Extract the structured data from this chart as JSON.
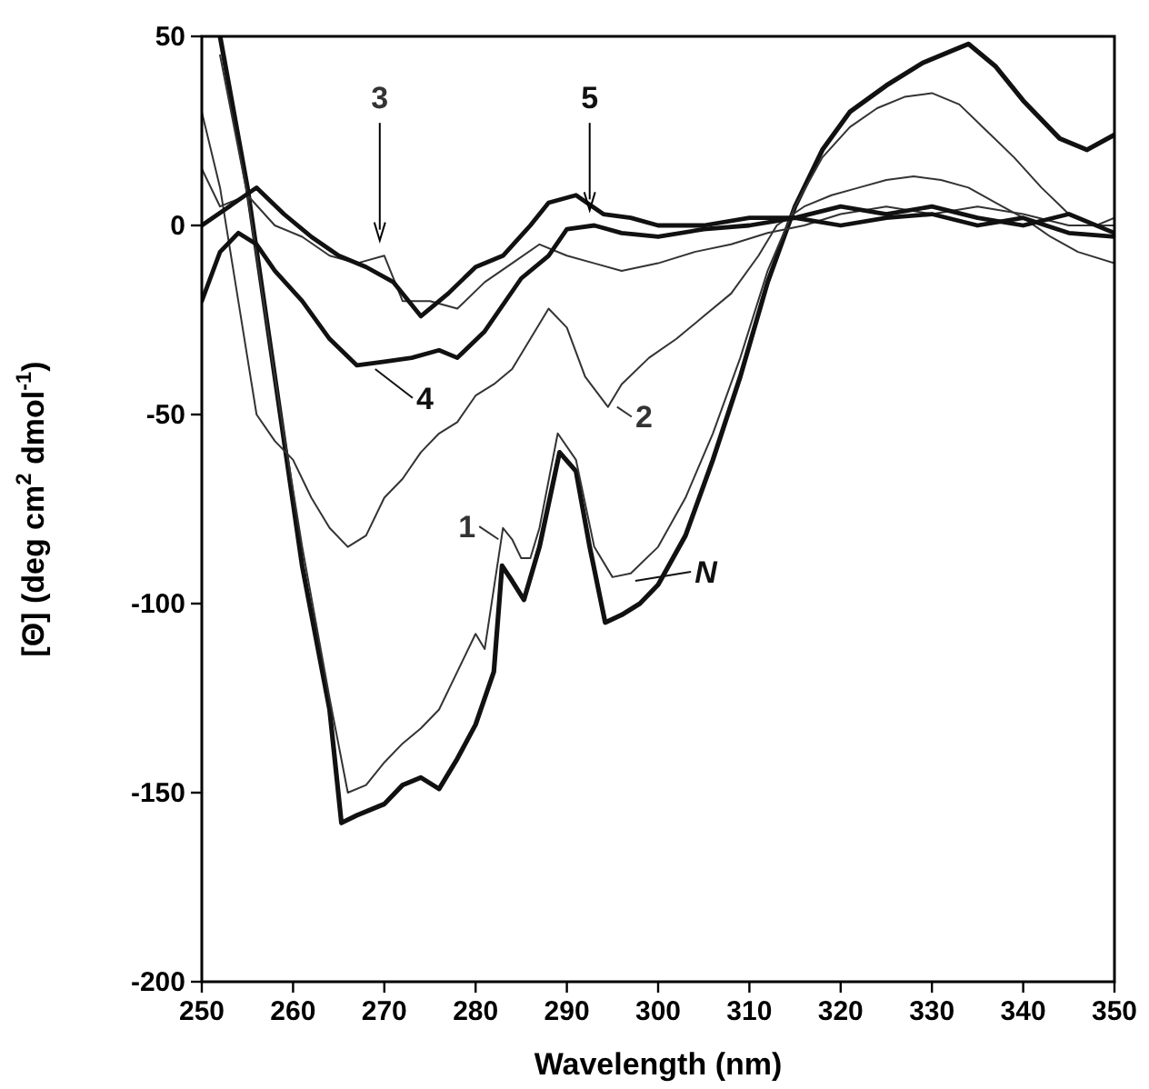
{
  "chart_data": {
    "type": "line",
    "xlabel": "Wavelength (nm)",
    "ylabel": "[Θ] (deg cm$^{2}$ dmol$^{-1}$)",
    "xlim": [
      250,
      350
    ],
    "ylim": [
      -200,
      50
    ],
    "xticks": [
      250,
      260,
      270,
      280,
      290,
      300,
      310,
      320,
      330,
      340,
      350
    ],
    "yticks": [
      -200,
      -150,
      -100,
      -50,
      0,
      50
    ],
    "grid": false,
    "legend": "center",
    "line_style": "solid",
    "marker": "none",
    "series": [
      {
        "name": "N",
        "color": "#111111",
        "x": [
          252,
          255,
          258,
          261,
          264,
          265.3,
          267,
          270,
          272,
          274,
          276,
          278,
          280,
          282,
          282.9,
          284,
          285.3,
          287,
          289.2,
          291,
          292.5,
          294.2,
          296,
          298,
          300,
          303,
          306,
          309,
          312,
          315,
          318,
          321,
          325,
          329,
          332,
          334,
          337,
          340,
          344,
          347,
          350
        ],
        "values": [
          50,
          10,
          -40,
          -90,
          -128,
          -158,
          -156,
          -153,
          -148,
          -146,
          -149,
          -141,
          -132,
          -118,
          -90,
          -94,
          -99,
          -85,
          -60,
          -65,
          -85,
          -105,
          -103,
          -100,
          -95,
          -82,
          -62,
          -40,
          -15,
          5,
          20,
          30,
          37,
          43,
          46,
          48,
          42,
          33,
          23,
          20,
          24
        ]
      },
      {
        "name": "1",
        "color": "#333333",
        "x": [
          252,
          255,
          258,
          261,
          264,
          266,
          268,
          270,
          272,
          274,
          276,
          278,
          280,
          281,
          282,
          283,
          284,
          285,
          286,
          287,
          289,
          291,
          293,
          295,
          297,
          300,
          303,
          306,
          309,
          312,
          315,
          318,
          321,
          324,
          327,
          330,
          333,
          336,
          339,
          342,
          345,
          348,
          350
        ],
        "values": [
          45,
          8,
          -40,
          -85,
          -125,
          -150,
          -148,
          -142,
          -137,
          -133,
          -128,
          -118,
          -108,
          -112,
          -96,
          -80,
          -83,
          -88,
          -88,
          -80,
          -55,
          -62,
          -85,
          -93,
          -92,
          -85,
          -72,
          -55,
          -35,
          -12,
          5,
          18,
          26,
          31,
          34,
          35,
          32,
          25,
          18,
          10,
          3,
          0,
          2
        ]
      },
      {
        "name": "2",
        "color": "#333333",
        "x": [
          250,
          252,
          254,
          256,
          258,
          260,
          262,
          264,
          266,
          268,
          270,
          272,
          274,
          276,
          278,
          280,
          282,
          284,
          286,
          288,
          290,
          292,
          294.5,
          296,
          299,
          302,
          305,
          308,
          311,
          313,
          316,
          319,
          322,
          325,
          328,
          331,
          334,
          337,
          340,
          343,
          346,
          350
        ],
        "values": [
          30,
          10,
          -20,
          -50,
          -57,
          -62,
          -72,
          -80,
          -85,
          -82,
          -72,
          -67,
          -60,
          -55,
          -52,
          -45,
          -42,
          -38,
          -30,
          -22,
          -27,
          -40,
          -48,
          -42,
          -35,
          -30,
          -24,
          -18,
          -8,
          0,
          5,
          8,
          10,
          12,
          13,
          12,
          10,
          6,
          2,
          -3,
          -7,
          -10
        ]
      },
      {
        "name": "3",
        "color": "#333333",
        "x": [
          250,
          252,
          255,
          258,
          261,
          264,
          267,
          270,
          272,
          275,
          278,
          281,
          284,
          287,
          290,
          293,
          296,
          300,
          304,
          308,
          312,
          316,
          320,
          325,
          330,
          335,
          340,
          345,
          350
        ],
        "values": [
          15,
          5,
          8,
          0,
          -3,
          -8,
          -10,
          -8,
          -20,
          -20,
          -22,
          -15,
          -10,
          -5,
          -8,
          -10,
          -12,
          -10,
          -7,
          -5,
          -2,
          0,
          3,
          5,
          3,
          5,
          3,
          0,
          0
        ]
      },
      {
        "name": "4",
        "color": "#111111",
        "x": [
          250,
          252,
          254,
          256,
          258,
          261,
          264,
          267,
          270,
          273,
          276,
          278,
          281,
          285,
          288,
          290,
          293,
          296,
          300,
          305,
          310,
          315,
          320,
          325,
          330,
          335,
          340,
          345,
          350
        ],
        "values": [
          -20,
          -7,
          -2,
          -5,
          -12,
          -20,
          -30,
          -37,
          -36,
          -35,
          -33,
          -35,
          -28,
          -14,
          -8,
          -1,
          0,
          -2,
          -3,
          -1,
          0,
          2,
          0,
          2,
          3,
          0,
          2,
          -2,
          -3
        ]
      },
      {
        "name": "5",
        "color": "#111111",
        "x": [
          250,
          253,
          256,
          259,
          262,
          265,
          268,
          271,
          274,
          277,
          280,
          283,
          286,
          288,
          291,
          294,
          297,
          300,
          305,
          310,
          315,
          320,
          325,
          330,
          335,
          340,
          345,
          350
        ],
        "values": [
          0,
          5,
          10,
          3,
          -3,
          -8,
          -11,
          -15,
          -24,
          -18,
          -11,
          -8,
          0,
          6,
          8,
          3,
          2,
          0,
          0,
          2,
          2,
          5,
          3,
          5,
          2,
          0,
          3,
          -2
        ]
      }
    ]
  }
}
